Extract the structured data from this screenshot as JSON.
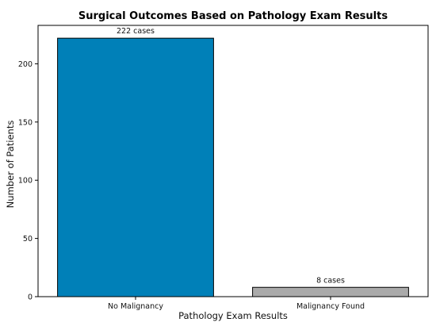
{
  "chart_data": {
    "type": "bar",
    "title": "Surgical Outcomes Based on Pathology Exam Results",
    "xlabel": "Pathology Exam Results",
    "ylabel": "Number of Patients",
    "categories": [
      "No Malignancy",
      "Malignancy Found"
    ],
    "values": [
      222,
      8
    ],
    "data_labels": [
      "222 cases",
      "8 cases"
    ],
    "bar_colors": [
      "#0080b8",
      "#aaaaaa"
    ],
    "ylim": [
      0,
      233
    ],
    "yticks": [
      0,
      50,
      100,
      150,
      200
    ],
    "grid": false,
    "legend": "none"
  }
}
